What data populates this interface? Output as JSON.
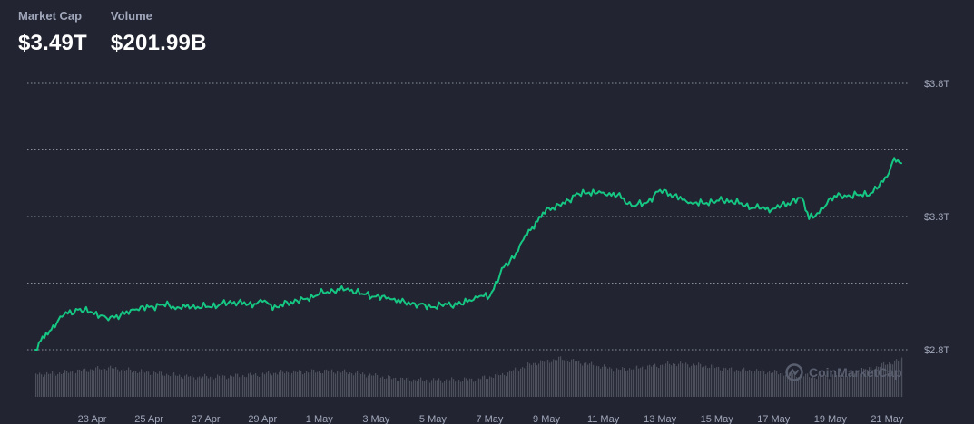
{
  "header": {
    "market_cap_label": "Market Cap",
    "market_cap_value": "$3.49T",
    "volume_label": "Volume",
    "volume_value": "$201.99B"
  },
  "watermark": {
    "text": "CoinMarketCap",
    "icon": "coinmarketcap-logo-icon"
  },
  "colors": {
    "background": "#222531",
    "line": "#16c784",
    "volume_bars": "#4d505c",
    "grid": "#8a8f9d",
    "text_muted": "#a1a7bb"
  },
  "chart_data": {
    "type": "line",
    "title": "",
    "xlabel": "",
    "ylabel": "",
    "ylim": [
      2.8,
      3.8
    ],
    "yticks": [
      2.8,
      3.3,
      3.8
    ],
    "ytick_labels": [
      "$2.8T",
      "$3.3T",
      "$3.8T"
    ],
    "xlim": [
      "2025-04-21",
      "2025-05-21T12:00"
    ],
    "xtick_labels": [
      "23 Apr",
      "25 Apr",
      "27 Apr",
      "29 Apr",
      "1 May",
      "3 May",
      "5 May",
      "7 May",
      "9 May",
      "11 May",
      "13 May",
      "15 May",
      "17 May",
      "19 May",
      "21 May"
    ],
    "xtick_dates": [
      "2025-04-23",
      "2025-04-25",
      "2025-04-27",
      "2025-04-29",
      "2025-05-01",
      "2025-05-03",
      "2025-05-05",
      "2025-05-07",
      "2025-05-09",
      "2025-05-11",
      "2025-05-13",
      "2025-05-15",
      "2025-05-17",
      "2025-05-19",
      "2025-05-21"
    ],
    "grid": true,
    "legend": "none",
    "series": [
      {
        "values_unit": "trillion USD",
        "x": [
          "2025-04-21T00:00",
          "2025-04-21T06:00",
          "2025-04-21T12:00",
          "2025-04-21T18:00",
          "2025-04-22T00:00",
          "2025-04-22T12:00",
          "2025-04-23T00:00",
          "2025-04-23T12:00",
          "2025-04-24T00:00",
          "2025-04-24T12:00",
          "2025-04-25T00:00",
          "2025-04-25T12:00",
          "2025-04-26T00:00",
          "2025-04-26T12:00",
          "2025-04-27T00:00",
          "2025-04-27T12:00",
          "2025-04-28T00:00",
          "2025-04-28T12:00",
          "2025-04-29T00:00",
          "2025-04-29T12:00",
          "2025-04-30T00:00",
          "2025-04-30T12:00",
          "2025-05-01T00:00",
          "2025-05-01T12:00",
          "2025-05-02T00:00",
          "2025-05-02T12:00",
          "2025-05-03T00:00",
          "2025-05-03T12:00",
          "2025-05-04T00:00",
          "2025-05-04T12:00",
          "2025-05-05T00:00",
          "2025-05-05T12:00",
          "2025-05-06T00:00",
          "2025-05-06T12:00",
          "2025-05-07T00:00",
          "2025-05-07T12:00",
          "2025-05-08T00:00",
          "2025-05-08T06:00",
          "2025-05-08T12:00",
          "2025-05-08T18:00",
          "2025-05-09T00:00",
          "2025-05-09T12:00",
          "2025-05-10T00:00",
          "2025-05-10T12:00",
          "2025-05-11T00:00",
          "2025-05-11T12:00",
          "2025-05-12T00:00",
          "2025-05-12T12:00",
          "2025-05-13T00:00",
          "2025-05-13T12:00",
          "2025-05-14T00:00",
          "2025-05-14T12:00",
          "2025-05-15T00:00",
          "2025-05-15T12:00",
          "2025-05-16T00:00",
          "2025-05-16T12:00",
          "2025-05-17T00:00",
          "2025-05-17T12:00",
          "2025-05-18T00:00",
          "2025-05-18T06:00",
          "2025-05-18T18:00",
          "2025-05-19T00:00",
          "2025-05-19T12:00",
          "2025-05-20T00:00",
          "2025-05-20T12:00",
          "2025-05-21T00:00",
          "2025-05-21T06:00",
          "2025-05-21T12:00"
        ],
        "values": [
          2.8,
          2.85,
          2.87,
          2.9,
          2.93,
          2.95,
          2.94,
          2.92,
          2.93,
          2.95,
          2.96,
          2.97,
          2.96,
          2.96,
          2.96,
          2.97,
          2.98,
          2.97,
          2.98,
          2.96,
          2.98,
          2.99,
          3.01,
          3.02,
          3.03,
          3.01,
          3.0,
          2.99,
          2.98,
          2.97,
          2.96,
          2.97,
          2.97,
          3.0,
          3.0,
          3.11,
          3.17,
          3.23,
          3.26,
          3.3,
          3.33,
          3.34,
          3.38,
          3.39,
          3.39,
          3.38,
          3.34,
          3.35,
          3.4,
          3.38,
          3.35,
          3.35,
          3.36,
          3.36,
          3.34,
          3.33,
          3.33,
          3.35,
          3.37,
          3.29,
          3.33,
          3.37,
          3.38,
          3.38,
          3.39,
          3.45,
          3.52,
          3.5
        ]
      }
    ],
    "volume": {
      "values_unit": "relative",
      "x": [
        "2025-04-21",
        "2025-04-22",
        "2025-04-23",
        "2025-04-24",
        "2025-04-25",
        "2025-04-26",
        "2025-04-27",
        "2025-04-28",
        "2025-04-29",
        "2025-04-30",
        "2025-05-01",
        "2025-05-02",
        "2025-05-03",
        "2025-05-04",
        "2025-05-05",
        "2025-05-06",
        "2025-05-07",
        "2025-05-08",
        "2025-05-09",
        "2025-05-10",
        "2025-05-11",
        "2025-05-12",
        "2025-05-13",
        "2025-05-14",
        "2025-05-15",
        "2025-05-16",
        "2025-05-17",
        "2025-05-18",
        "2025-05-19",
        "2025-05-20",
        "2025-05-21"
      ],
      "values": [
        0.55,
        0.62,
        0.7,
        0.62,
        0.55,
        0.48,
        0.48,
        0.52,
        0.58,
        0.6,
        0.62,
        0.55,
        0.45,
        0.4,
        0.4,
        0.42,
        0.55,
        0.8,
        0.92,
        0.78,
        0.65,
        0.72,
        0.8,
        0.75,
        0.65,
        0.62,
        0.55,
        0.48,
        0.52,
        0.7,
        0.9
      ]
    }
  }
}
